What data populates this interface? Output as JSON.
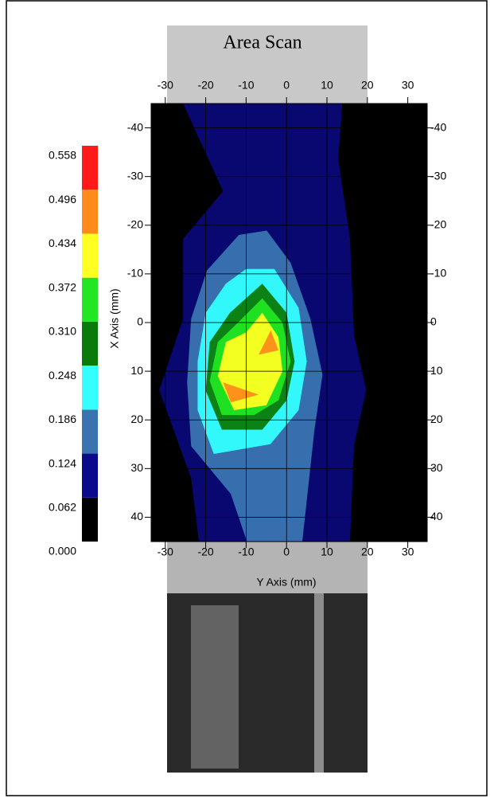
{
  "chart_data": {
    "type": "contour",
    "title": "Area Scan",
    "xlabel": "Y Axis (mm)",
    "ylabel": "X Axis (mm)",
    "xlim": [
      -33.5,
      34.8
    ],
    "xticks": [
      -30,
      -20,
      -10,
      0,
      10,
      20,
      30
    ],
    "ylim": [
      -45,
      45
    ],
    "yticks": [
      -40,
      -30,
      -20,
      -10,
      0,
      10,
      20,
      30,
      40
    ],
    "grid": true,
    "colorbar": {
      "levels": [
        0.0,
        0.062,
        0.124,
        0.186,
        0.248,
        0.31,
        0.372,
        0.434,
        0.496,
        0.558
      ],
      "labels": [
        "0.000",
        "0.062",
        "0.124",
        "0.186",
        "0.248",
        "0.310",
        "0.372",
        "0.434",
        "0.496",
        "0.558"
      ],
      "colors": [
        "#000000",
        "#0a0a8c",
        "#3a74b0",
        "#33ffff",
        "#0a7a0a",
        "#22e622",
        "#ffff22",
        "#ff8c1a",
        "#ff1a1a"
      ]
    },
    "contours": [
      {
        "level": 0.062,
        "polygons": [
          [
            [
              -25.6,
              -45
            ],
            [
              13.8,
              -45
            ],
            [
              12.8,
              -33.6
            ],
            [
              15.7,
              -17.2
            ],
            [
              16.7,
              2.5
            ],
            [
              19.7,
              13.9
            ],
            [
              16.7,
              25.4
            ],
            [
              15.7,
              45
            ],
            [
              -21.7,
              45
            ],
            [
              -23.6,
              32
            ],
            [
              -31.5,
              13.9
            ],
            [
              -25.6,
              -0.8
            ],
            [
              -25.6,
              -17.2
            ],
            [
              -15.7,
              -27
            ]
          ]
        ]
      },
      {
        "level": 0.124,
        "polygons": [
          [
            [
              -11.8,
              -18
            ],
            [
              -4.9,
              -18.9
            ],
            [
              1,
              -12.3
            ],
            [
              5.9,
              -0.8
            ],
            [
              8.9,
              10.7
            ],
            [
              6.9,
              22.1
            ],
            [
              3.9,
              45
            ],
            [
              -9.8,
              45
            ],
            [
              -13.8,
              35.2
            ],
            [
              -23.6,
              25.4
            ],
            [
              -24.6,
              12.3
            ],
            [
              -23.6,
              -0.8
            ],
            [
              -19.7,
              -10.7
            ]
          ]
        ]
      },
      {
        "level": 0.186,
        "polygons": [
          [
            [
              -10,
              -11
            ],
            [
              -3,
              -11
            ],
            [
              3,
              -3
            ],
            [
              5,
              8
            ],
            [
              3,
              18
            ],
            [
              -4,
              25
            ],
            [
              -18,
              27
            ],
            [
              -22,
              18
            ],
            [
              -22,
              8
            ],
            [
              -20,
              -2
            ],
            [
              -15,
              -8
            ]
          ]
        ]
      },
      {
        "level": 0.248,
        "polygons": [
          [
            [
              -6,
              -8
            ],
            [
              0,
              -2
            ],
            [
              2,
              8
            ],
            [
              0,
              16
            ],
            [
              -6,
              22
            ],
            [
              -16,
              22
            ],
            [
              -20,
              14
            ],
            [
              -19,
              4
            ],
            [
              -14,
              -2
            ]
          ]
        ]
      },
      {
        "level": 0.31,
        "polygons": [
          [
            [
              -6,
              -5
            ],
            [
              -1,
              0
            ],
            [
              1,
              8
            ],
            [
              -2,
              16
            ],
            [
              -8,
              19
            ],
            [
              -16,
              19
            ],
            [
              -19,
              12
            ],
            [
              -17,
              4
            ],
            [
              -12,
              0
            ]
          ]
        ]
      },
      {
        "level": 0.372,
        "polygons": [
          [
            [
              -6,
              -2
            ],
            [
              -2,
              3
            ],
            [
              -1,
              10
            ],
            [
              -5,
              17
            ],
            [
              -13,
              18
            ],
            [
              -17,
              11
            ],
            [
              -15,
              4
            ],
            [
              -10,
              2
            ]
          ]
        ]
      },
      {
        "level": 0.434,
        "polygons": [
          [
            [
              -3.9,
              1.6
            ],
            [
              -2,
              5.7
            ],
            [
              -6.9,
              6.6
            ]
          ],
          [
            [
              -15.7,
              12.3
            ],
            [
              -6.9,
              14.8
            ],
            [
              -13.8,
              16.4
            ]
          ]
        ]
      }
    ]
  }
}
